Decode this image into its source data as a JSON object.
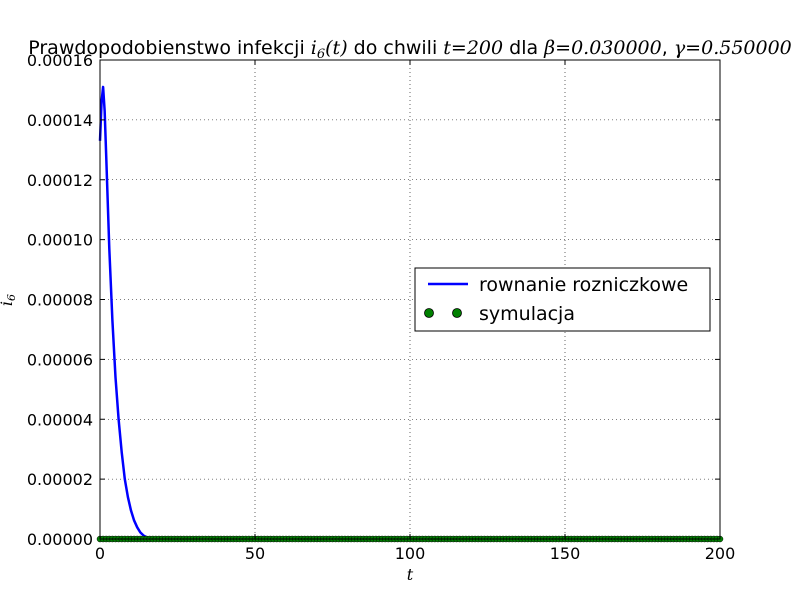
{
  "chart_data": {
    "type": "line",
    "title": {
      "prefix": "Prawdopodobienstwo infekcji ",
      "var_sym": "i",
      "var_sub": "6",
      "var_arg": "(t)",
      "mid": " do chwili ",
      "t_expr": "t=200",
      "dla": " dla ",
      "beta": "β=0.030000",
      "sep": ", ",
      "gamma": "γ=0.550000"
    },
    "xlabel": "t",
    "ylabel": {
      "sym": "i",
      "sub": "6"
    },
    "xlim": [
      0,
      200
    ],
    "ylim": [
      0,
      0.00016
    ],
    "x_ticks": [
      {
        "value": 0,
        "label": "0"
      },
      {
        "value": 50,
        "label": "50"
      },
      {
        "value": 100,
        "label": "100"
      },
      {
        "value": 150,
        "label": "150"
      },
      {
        "value": 200,
        "label": "200"
      }
    ],
    "y_ticks": [
      {
        "value": 0,
        "label": "0.00000"
      },
      {
        "value": 2e-05,
        "label": "0.00002"
      },
      {
        "value": 4e-05,
        "label": "0.00004"
      },
      {
        "value": 6e-05,
        "label": "0.00006"
      },
      {
        "value": 8e-05,
        "label": "0.00008"
      },
      {
        "value": 0.0001,
        "label": "0.00010"
      },
      {
        "value": 0.00012,
        "label": "0.00012"
      },
      {
        "value": 0.00014,
        "label": "0.00014"
      },
      {
        "value": 0.00016,
        "label": "0.00016"
      }
    ],
    "grid": true,
    "legend": {
      "placement": "center-right"
    },
    "series": [
      {
        "name": "rownanie rozniczkowe",
        "kind": "line",
        "color": "#0000ff",
        "x": [
          0,
          0.5,
          1,
          1.5,
          2,
          3,
          4,
          5,
          6,
          7,
          8,
          9,
          10,
          11,
          12,
          13,
          14,
          15,
          16,
          17,
          18,
          20,
          25,
          30,
          40,
          50,
          75,
          100,
          125,
          150,
          175,
          200
        ],
        "y": [
          0.000133,
          0.000146,
          0.000151,
          0.000143,
          0.000128,
          9.7e-05,
          7.3e-05,
          5.4e-05,
          4e-05,
          2.9e-05,
          2e-05,
          1.4e-05,
          9.5e-06,
          6.2e-06,
          3.9e-06,
          2.2e-06,
          1.2e-06,
          6e-07,
          3e-07,
          1e-07,
          5e-08,
          0,
          0,
          0,
          0,
          0,
          0,
          0,
          0,
          0,
          0,
          0
        ]
      },
      {
        "name": "symulacja",
        "kind": "markers",
        "color": "#008000",
        "x_start": 0,
        "x_end": 200,
        "x_step": 1,
        "y_value": 0
      }
    ]
  }
}
